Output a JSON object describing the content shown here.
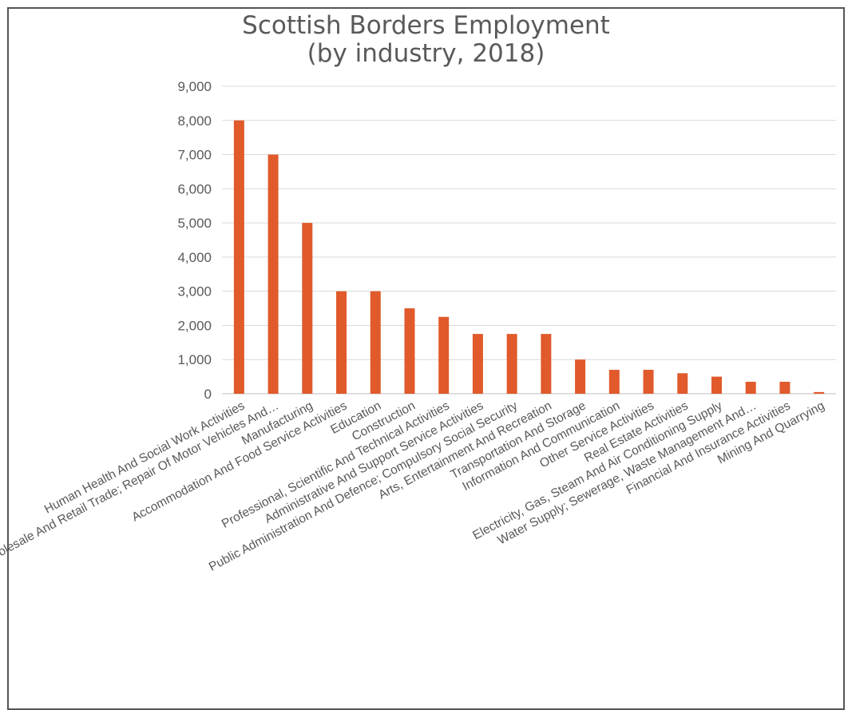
{
  "chart_data": {
    "type": "bar",
    "title_lines": [
      "Scottish Borders Employment",
      "(by industry, 2018)"
    ],
    "xlabel": "",
    "ylabel": "",
    "ylim": [
      0,
      9000
    ],
    "yticks": [
      "0",
      "1,000",
      "2,000",
      "3,000",
      "4,000",
      "5,000",
      "6,000",
      "7,000",
      "8,000",
      "9,000"
    ],
    "grid": true,
    "bar_color": "#E05A2B",
    "categories": [
      "Human Health And Social Work Activities",
      "Wholesale And Retail Trade; Repair Of Motor Vehicles And…",
      "Manufacturing",
      "Accommodation And Food Service Activities",
      "Education",
      "Construction",
      "Professional, Scientific And Technical Activities",
      "Administrative And Support Service Activities",
      "Public Administration And Defence; Compulsory Social Security",
      "Arts, Entertainment And Recreation",
      "Transportation And Storage",
      "Information And Communication",
      "Other Service Activities",
      "Real Estate Activities",
      "Electricity, Gas, Steam And Air Conditioning Supply",
      "Water Supply; Sewerage, Waste Management And…",
      "Financial And Insurance Activities",
      "Mining And Quarrying"
    ],
    "values": [
      8000,
      7000,
      5000,
      3000,
      3000,
      2500,
      2250,
      1750,
      1750,
      1750,
      1000,
      700,
      700,
      600,
      500,
      350,
      350,
      50
    ]
  }
}
